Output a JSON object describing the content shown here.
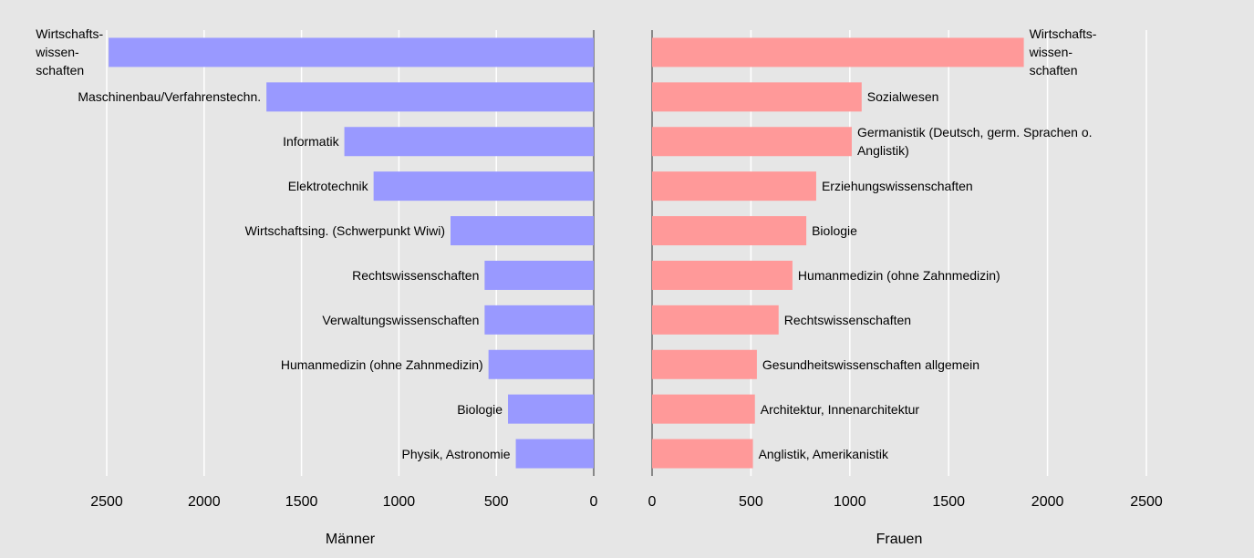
{
  "chart_data": [
    {
      "type": "bar",
      "orientation": "horizontal",
      "xlabel": "Männer",
      "color": "#9999ff",
      "categories": [
        "Wirtschafts-\nwissen-\nschaften",
        "Maschinenbau/Verfahrenstechn.",
        "Informatik",
        "Elektrotechnik",
        "Wirtschaftsing. (Schwerpunkt Wiwi)",
        "Rechtswissenschaften",
        "Verwaltungswissenschaften",
        "Humanmedizin (ohne Zahnmedizin)",
        "Biologie",
        "Physik, Astronomie"
      ],
      "values": [
        2490,
        1680,
        1280,
        1130,
        735,
        560,
        560,
        540,
        440,
        400
      ],
      "xlim": [
        2500,
        0
      ],
      "xticks": [
        2500,
        2000,
        1500,
        1000,
        500,
        0
      ],
      "grid": true
    },
    {
      "type": "bar",
      "orientation": "horizontal",
      "xlabel": "Frauen",
      "color": "#ff9999",
      "categories": [
        "Wirtschafts-\nwissen-\nschaften",
        "Sozialwesen",
        "Germanistik (Deutsch, germ. Sprachen o.\nAnglistik)",
        "Erziehungswissenschaften",
        "Biologie",
        "Humanmedizin (ohne Zahnmedizin)",
        "Rechtswissenschaften",
        "Gesundheitswissenschaften allgemein",
        "Architektur, Innenarchitektur",
        "Anglistik, Amerikanistik"
      ],
      "values": [
        1880,
        1060,
        1010,
        830,
        780,
        710,
        640,
        530,
        520,
        510
      ],
      "xlim": [
        0,
        2500
      ],
      "xticks": [
        0,
        500,
        1000,
        1500,
        2000,
        2500
      ],
      "grid": true
    }
  ]
}
